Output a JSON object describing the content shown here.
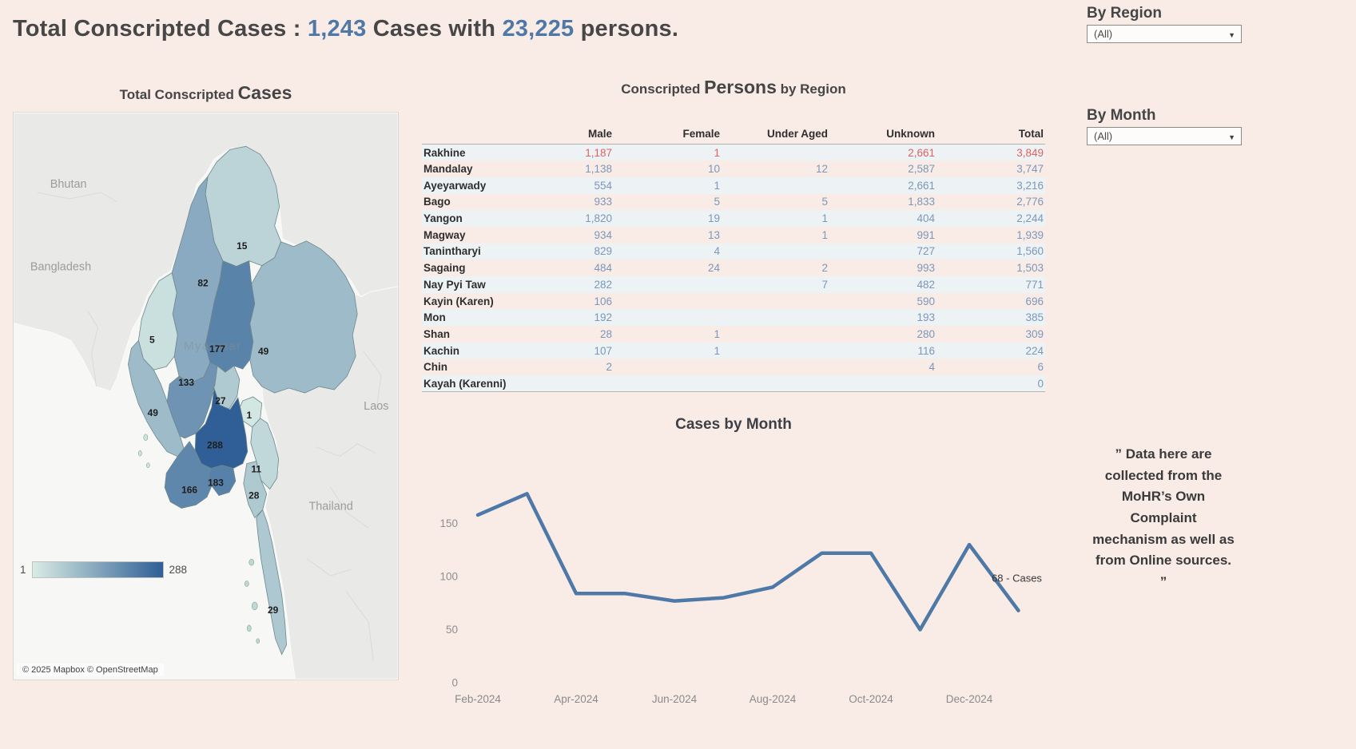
{
  "header": {
    "title_prefix": "Total Conscripted Cases : ",
    "cases_count": "1,243",
    "title_mid": " Cases with ",
    "persons_count": "23,225",
    "title_suffix": " persons."
  },
  "filters": {
    "region_label": "By Region",
    "region_value": "(All)",
    "month_label": "By Month",
    "month_value": "(All)"
  },
  "map_panel": {
    "title_part1": "Total Conscripted ",
    "title_part2": "Cases",
    "legend_min": "1",
    "legend_max": "288",
    "attribution": "© 2025 Mapbox  © OpenStreetMap",
    "country_labels": {
      "bhutan": "Bhutan",
      "bangladesh": "Bangladesh",
      "myanmar": "Myanmar",
      "laos": "Laos",
      "thailand": "Thailand"
    }
  },
  "table_panel": {
    "title_part1": "Conscripted ",
    "title_part2": "Persons",
    "title_part3": " by Region"
  },
  "line_panel": {
    "title": "Cases by Month"
  },
  "note": {
    "text": "” Data here are collected from the MoHR’s Own Complaint mechanism as well as from Online sources. ”"
  },
  "colors": {
    "accent_blue": "#4e79a7",
    "highlight_red": "#df6161",
    "map_scale_low": "#d9ece5",
    "map_scale_high": "#2f5f96"
  },
  "chart_data": [
    {
      "type": "choropleth_map",
      "title": "Total Conscripted Cases",
      "unit": "cases",
      "value_range": [
        1,
        288
      ],
      "regions": [
        {
          "name": "Kachin",
          "cases": 15
        },
        {
          "name": "Sagaing",
          "cases": 82
        },
        {
          "name": "Chin",
          "cases": 5
        },
        {
          "name": "Shan",
          "cases": 49
        },
        {
          "name": "Mandalay",
          "cases": 177
        },
        {
          "name": "Magway",
          "cases": 133
        },
        {
          "name": "Nay Pyi Taw",
          "cases": 27
        },
        {
          "name": "Kayah",
          "cases": 1
        },
        {
          "name": "Rakhine",
          "cases": 49
        },
        {
          "name": "Bago",
          "cases": 288
        },
        {
          "name": "Yangon",
          "cases": 183
        },
        {
          "name": "Ayeyarwady",
          "cases": 166
        },
        {
          "name": "Kayin",
          "cases": 11
        },
        {
          "name": "Mon",
          "cases": 28
        },
        {
          "name": "Tanintharyi",
          "cases": 29
        }
      ]
    },
    {
      "type": "table",
      "title": "Conscripted Persons by Region",
      "columns": [
        "Male",
        "Female",
        "Under Aged",
        "Unknown",
        "Total"
      ],
      "rows": [
        {
          "region": "Rakhine",
          "values": [
            "1,187",
            "1",
            "",
            "2,661",
            "3,849"
          ],
          "highlight": true
        },
        {
          "region": "Mandalay",
          "values": [
            "1,138",
            "10",
            "12",
            "2,587",
            "3,747"
          ],
          "highlight": false
        },
        {
          "region": "Ayeyarwady",
          "values": [
            "554",
            "1",
            "",
            "2,661",
            "3,216"
          ],
          "highlight": false
        },
        {
          "region": "Bago",
          "values": [
            "933",
            "5",
            "5",
            "1,833",
            "2,776"
          ],
          "highlight": false
        },
        {
          "region": "Yangon",
          "values": [
            "1,820",
            "19",
            "1",
            "404",
            "2,244"
          ],
          "highlight": false
        },
        {
          "region": "Magway",
          "values": [
            "934",
            "13",
            "1",
            "991",
            "1,939"
          ],
          "highlight": false
        },
        {
          "region": "Tanintharyi",
          "values": [
            "829",
            "4",
            "",
            "727",
            "1,560"
          ],
          "highlight": false
        },
        {
          "region": "Sagaing",
          "values": [
            "484",
            "24",
            "2",
            "993",
            "1,503"
          ],
          "highlight": false
        },
        {
          "region": "Nay Pyi Taw",
          "values": [
            "282",
            "",
            "7",
            "482",
            "771"
          ],
          "highlight": false
        },
        {
          "region": "Kayin (Karen)",
          "values": [
            "106",
            "",
            "",
            "590",
            "696"
          ],
          "highlight": false
        },
        {
          "region": "Mon",
          "values": [
            "192",
            "",
            "",
            "193",
            "385"
          ],
          "highlight": false
        },
        {
          "region": "Shan",
          "values": [
            "28",
            "1",
            "",
            "280",
            "309"
          ],
          "highlight": false
        },
        {
          "region": "Kachin",
          "values": [
            "107",
            "1",
            "",
            "116",
            "224"
          ],
          "highlight": false
        },
        {
          "region": "Chin",
          "values": [
            "2",
            "",
            "",
            "4",
            "6"
          ],
          "highlight": false
        },
        {
          "region": "Kayah (Karenni)",
          "values": [
            "",
            "",
            "",
            "",
            "0"
          ],
          "highlight": false
        }
      ]
    },
    {
      "type": "line",
      "title": "Cases by Month",
      "x": [
        "Feb-2024",
        "Mar-2024",
        "Apr-2024",
        "May-2024",
        "Jun-2024",
        "Jul-2024",
        "Aug-2024",
        "Sep-2024",
        "Oct-2024",
        "Nov-2024",
        "Dec-2024",
        "Jan-2025"
      ],
      "values": [
        158,
        178,
        84,
        84,
        77,
        80,
        90,
        122,
        122,
        50,
        130,
        68
      ],
      "yticks": [
        0,
        50,
        100,
        150
      ],
      "ylim": [
        0,
        190
      ],
      "xtick_labels": [
        "Feb-2024",
        "Apr-2024",
        "Jun-2024",
        "Aug-2024",
        "Oct-2024",
        "Dec-2024"
      ],
      "end_label": "68 - Cases",
      "line_color": "#4e79a7",
      "legend": "none",
      "grid": false
    }
  ]
}
